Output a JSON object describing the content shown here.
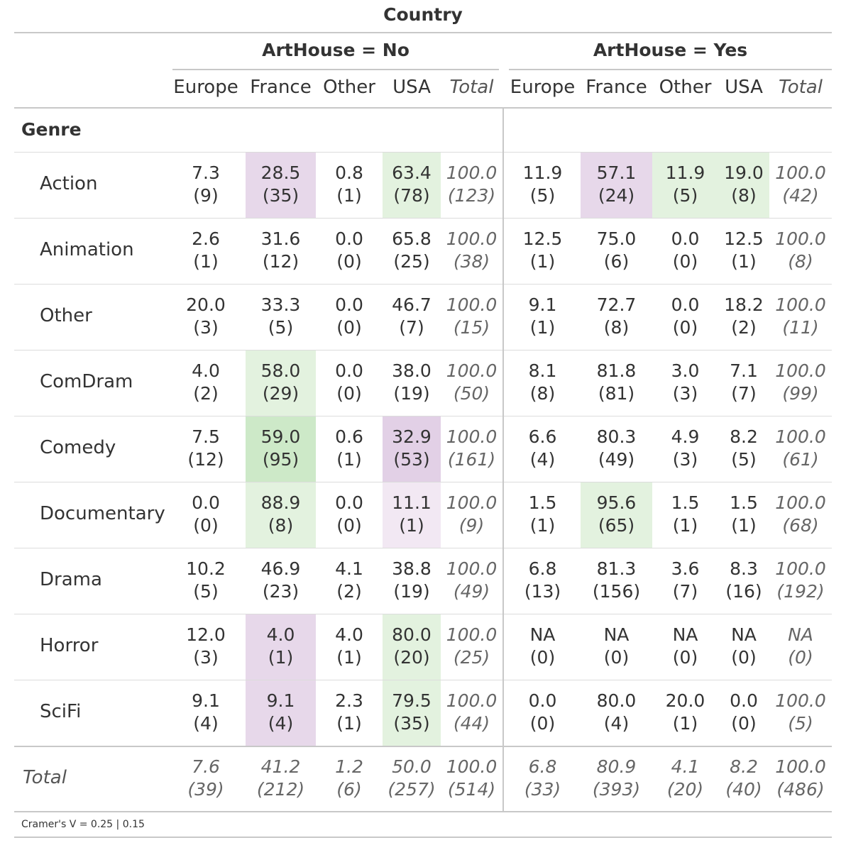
{
  "title": "Country",
  "groups": [
    "ArtHouse = No",
    "ArtHouse = Yes"
  ],
  "columns": [
    "Europe",
    "France",
    "Other",
    "USA",
    "Total"
  ],
  "row_header": "Genre",
  "rows": [
    {
      "label": "Action",
      "no": [
        [
          "7.3",
          "(9)"
        ],
        [
          "28.5",
          "(35)"
        ],
        [
          "0.8",
          "(1)"
        ],
        [
          "63.4",
          "(78)"
        ],
        [
          "100.0",
          "(123)"
        ]
      ],
      "yes": [
        [
          "11.9",
          "(5)"
        ],
        [
          "57.1",
          "(24)"
        ],
        [
          "11.9",
          "(5)"
        ],
        [
          "19.0",
          "(8)"
        ],
        [
          "100.0",
          "(42)"
        ]
      ]
    },
    {
      "label": "Animation",
      "no": [
        [
          "2.6",
          "(1)"
        ],
        [
          "31.6",
          "(12)"
        ],
        [
          "0.0",
          "(0)"
        ],
        [
          "65.8",
          "(25)"
        ],
        [
          "100.0",
          "(38)"
        ]
      ],
      "yes": [
        [
          "12.5",
          "(1)"
        ],
        [
          "75.0",
          "(6)"
        ],
        [
          "0.0",
          "(0)"
        ],
        [
          "12.5",
          "(1)"
        ],
        [
          "100.0",
          "(8)"
        ]
      ]
    },
    {
      "label": "Other",
      "no": [
        [
          "20.0",
          "(3)"
        ],
        [
          "33.3",
          "(5)"
        ],
        [
          "0.0",
          "(0)"
        ],
        [
          "46.7",
          "(7)"
        ],
        [
          "100.0",
          "(15)"
        ]
      ],
      "yes": [
        [
          "9.1",
          "(1)"
        ],
        [
          "72.7",
          "(8)"
        ],
        [
          "0.0",
          "(0)"
        ],
        [
          "18.2",
          "(2)"
        ],
        [
          "100.0",
          "(11)"
        ]
      ]
    },
    {
      "label": "ComDram",
      "no": [
        [
          "4.0",
          "(2)"
        ],
        [
          "58.0",
          "(29)"
        ],
        [
          "0.0",
          "(0)"
        ],
        [
          "38.0",
          "(19)"
        ],
        [
          "100.0",
          "(50)"
        ]
      ],
      "yes": [
        [
          "8.1",
          "(8)"
        ],
        [
          "81.8",
          "(81)"
        ],
        [
          "3.0",
          "(3)"
        ],
        [
          "7.1",
          "(7)"
        ],
        [
          "100.0",
          "(99)"
        ]
      ]
    },
    {
      "label": "Comedy",
      "no": [
        [
          "7.5",
          "(12)"
        ],
        [
          "59.0",
          "(95)"
        ],
        [
          "0.6",
          "(1)"
        ],
        [
          "32.9",
          "(53)"
        ],
        [
          "100.0",
          "(161)"
        ]
      ],
      "yes": [
        [
          "6.6",
          "(4)"
        ],
        [
          "80.3",
          "(49)"
        ],
        [
          "4.9",
          "(3)"
        ],
        [
          "8.2",
          "(5)"
        ],
        [
          "100.0",
          "(61)"
        ]
      ]
    },
    {
      "label": "Documentary",
      "no": [
        [
          "0.0",
          "(0)"
        ],
        [
          "88.9",
          "(8)"
        ],
        [
          "0.0",
          "(0)"
        ],
        [
          "11.1",
          "(1)"
        ],
        [
          "100.0",
          "(9)"
        ]
      ],
      "yes": [
        [
          "1.5",
          "(1)"
        ],
        [
          "95.6",
          "(65)"
        ],
        [
          "1.5",
          "(1)"
        ],
        [
          "1.5",
          "(1)"
        ],
        [
          "100.0",
          "(68)"
        ]
      ]
    },
    {
      "label": "Drama",
      "no": [
        [
          "10.2",
          "(5)"
        ],
        [
          "46.9",
          "(23)"
        ],
        [
          "4.1",
          "(2)"
        ],
        [
          "38.8",
          "(19)"
        ],
        [
          "100.0",
          "(49)"
        ]
      ],
      "yes": [
        [
          "6.8",
          "(13)"
        ],
        [
          "81.3",
          "(156)"
        ],
        [
          "3.6",
          "(7)"
        ],
        [
          "8.3",
          "(16)"
        ],
        [
          "100.0",
          "(192)"
        ]
      ]
    },
    {
      "label": "Horror",
      "no": [
        [
          "12.0",
          "(3)"
        ],
        [
          "4.0",
          "(1)"
        ],
        [
          "4.0",
          "(1)"
        ],
        [
          "80.0",
          "(20)"
        ],
        [
          "100.0",
          "(25)"
        ]
      ],
      "yes": [
        [
          "NA",
          "(0)"
        ],
        [
          "NA",
          "(0)"
        ],
        [
          "NA",
          "(0)"
        ],
        [
          "NA",
          "(0)"
        ],
        [
          "NA",
          "(0)"
        ]
      ]
    },
    {
      "label": "SciFi",
      "no": [
        [
          "9.1",
          "(4)"
        ],
        [
          "9.1",
          "(4)"
        ],
        [
          "2.3",
          "(1)"
        ],
        [
          "79.5",
          "(35)"
        ],
        [
          "100.0",
          "(44)"
        ]
      ],
      "yes": [
        [
          "0.0",
          "(0)"
        ],
        [
          "80.0",
          "(4)"
        ],
        [
          "20.0",
          "(1)"
        ],
        [
          "0.0",
          "(0)"
        ],
        [
          "100.0",
          "(5)"
        ]
      ]
    }
  ],
  "total_row": {
    "label": "Total",
    "no": [
      [
        "7.6",
        "(39)"
      ],
      [
        "41.2",
        "(212)"
      ],
      [
        "1.2",
        "(6)"
      ],
      [
        "50.0",
        "(257)"
      ],
      [
        "100.0",
        "(514)"
      ]
    ],
    "yes": [
      [
        "6.8",
        "(33)"
      ],
      [
        "80.9",
        "(393)"
      ],
      [
        "4.1",
        "(20)"
      ],
      [
        "8.2",
        "(40)"
      ],
      [
        "100.0",
        "(486)"
      ]
    ]
  },
  "highlights": {
    "Action": {
      "no": [
        "",
        "#e7d8ea",
        "",
        "#e3f2df",
        ""
      ],
      "yes": [
        "",
        "#e7d8ea",
        "#e3f2df",
        "#e3f2df",
        ""
      ]
    },
    "ComDram": {
      "no": [
        "",
        "#e3f2df",
        "",
        "",
        ""
      ],
      "yes": [
        "",
        "",
        "",
        "",
        ""
      ]
    },
    "Comedy": {
      "no": [
        "",
        "#cde9c8",
        "",
        "#e2d0e6",
        ""
      ],
      "yes": [
        "",
        "",
        "",
        "",
        ""
      ]
    },
    "Documentary": {
      "no": [
        "",
        "#e3f2df",
        "",
        "#f2e8f3",
        ""
      ],
      "yes": [
        "",
        "#e3f2df",
        "",
        "",
        ""
      ]
    },
    "Horror": {
      "no": [
        "",
        "#e7d8ea",
        "",
        "#e3f2df",
        ""
      ],
      "yes": [
        "",
        "",
        "",
        "",
        ""
      ]
    },
    "SciFi": {
      "no": [
        "",
        "#e7d8ea",
        "",
        "#e3f2df",
        ""
      ],
      "yes": [
        "",
        "",
        "",
        "",
        ""
      ]
    }
  },
  "footnote": "Cramer's V = 0.25 | 0.15"
}
